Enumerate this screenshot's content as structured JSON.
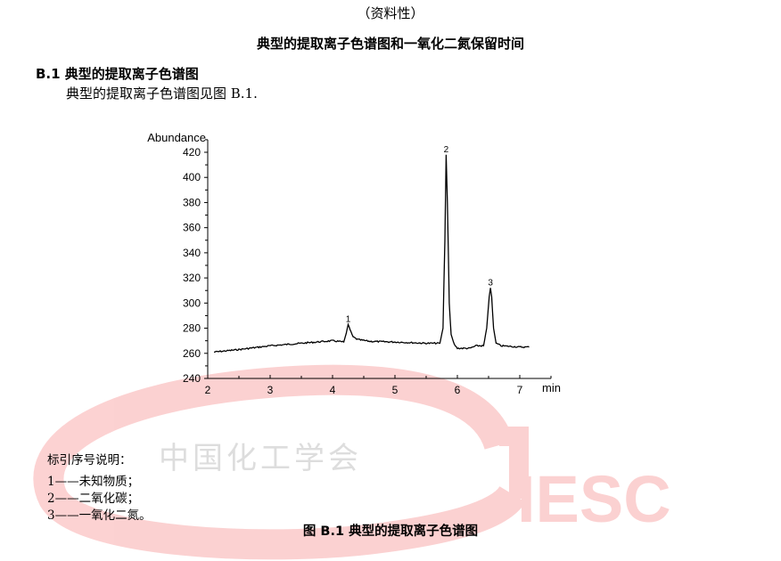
{
  "header": {
    "annex_type": "（资料性）",
    "annex_title": "典型的提取离子色谱图和一氧化二氮保留时间"
  },
  "section": {
    "heading": "B.1  典型的提取离子色谱图",
    "paragraph": "典型的提取离子色谱图见图 B.1."
  },
  "chart_data": {
    "type": "line",
    "title": "",
    "xlabel": "min",
    "ylabel": "Abundance",
    "xlim": [
      2,
      7.5
    ],
    "ylim": [
      240,
      430
    ],
    "xticks": [
      2,
      3,
      4,
      5,
      6,
      7
    ],
    "yticks": [
      240,
      260,
      280,
      300,
      320,
      340,
      360,
      380,
      400,
      420
    ],
    "grid": false,
    "line_color": "#000000",
    "series": [
      {
        "x": [
          2.1,
          2.5,
          3.0,
          3.5,
          4.0,
          4.18,
          4.22,
          4.25,
          4.28,
          4.33,
          4.4,
          4.6,
          5.0,
          5.5,
          5.72,
          5.77,
          5.8,
          5.82,
          5.84,
          5.87,
          5.9,
          5.95,
          6.0,
          6.2,
          6.3,
          6.42,
          6.47,
          6.51,
          6.53,
          6.55,
          6.58,
          6.62,
          6.7,
          7.0,
          7.15
        ],
        "y": [
          261,
          263,
          266,
          268,
          270,
          269,
          276,
          283,
          279,
          273,
          271,
          269.5,
          269,
          268,
          268,
          280,
          350,
          418,
          380,
          300,
          275,
          267,
          264,
          264,
          266,
          266,
          280,
          305,
          312,
          305,
          280,
          268,
          266,
          265,
          265
        ]
      }
    ],
    "annotations": [
      {
        "label": "1",
        "x": 4.25,
        "y": 283
      },
      {
        "label": "2",
        "x": 5.82,
        "y": 418
      },
      {
        "label": "3",
        "x": 6.53,
        "y": 312
      }
    ]
  },
  "legend": {
    "title": "标引序号说明：",
    "items": [
      "1——未知物质；",
      "2——二氧化碳；",
      "3——一氧化二氮。"
    ]
  },
  "caption": "图 B.1    典型的提取离子色谱图",
  "watermark": {
    "org_name": "中国化工学会",
    "logo_text": "IESC",
    "color": "#fbcaca"
  }
}
